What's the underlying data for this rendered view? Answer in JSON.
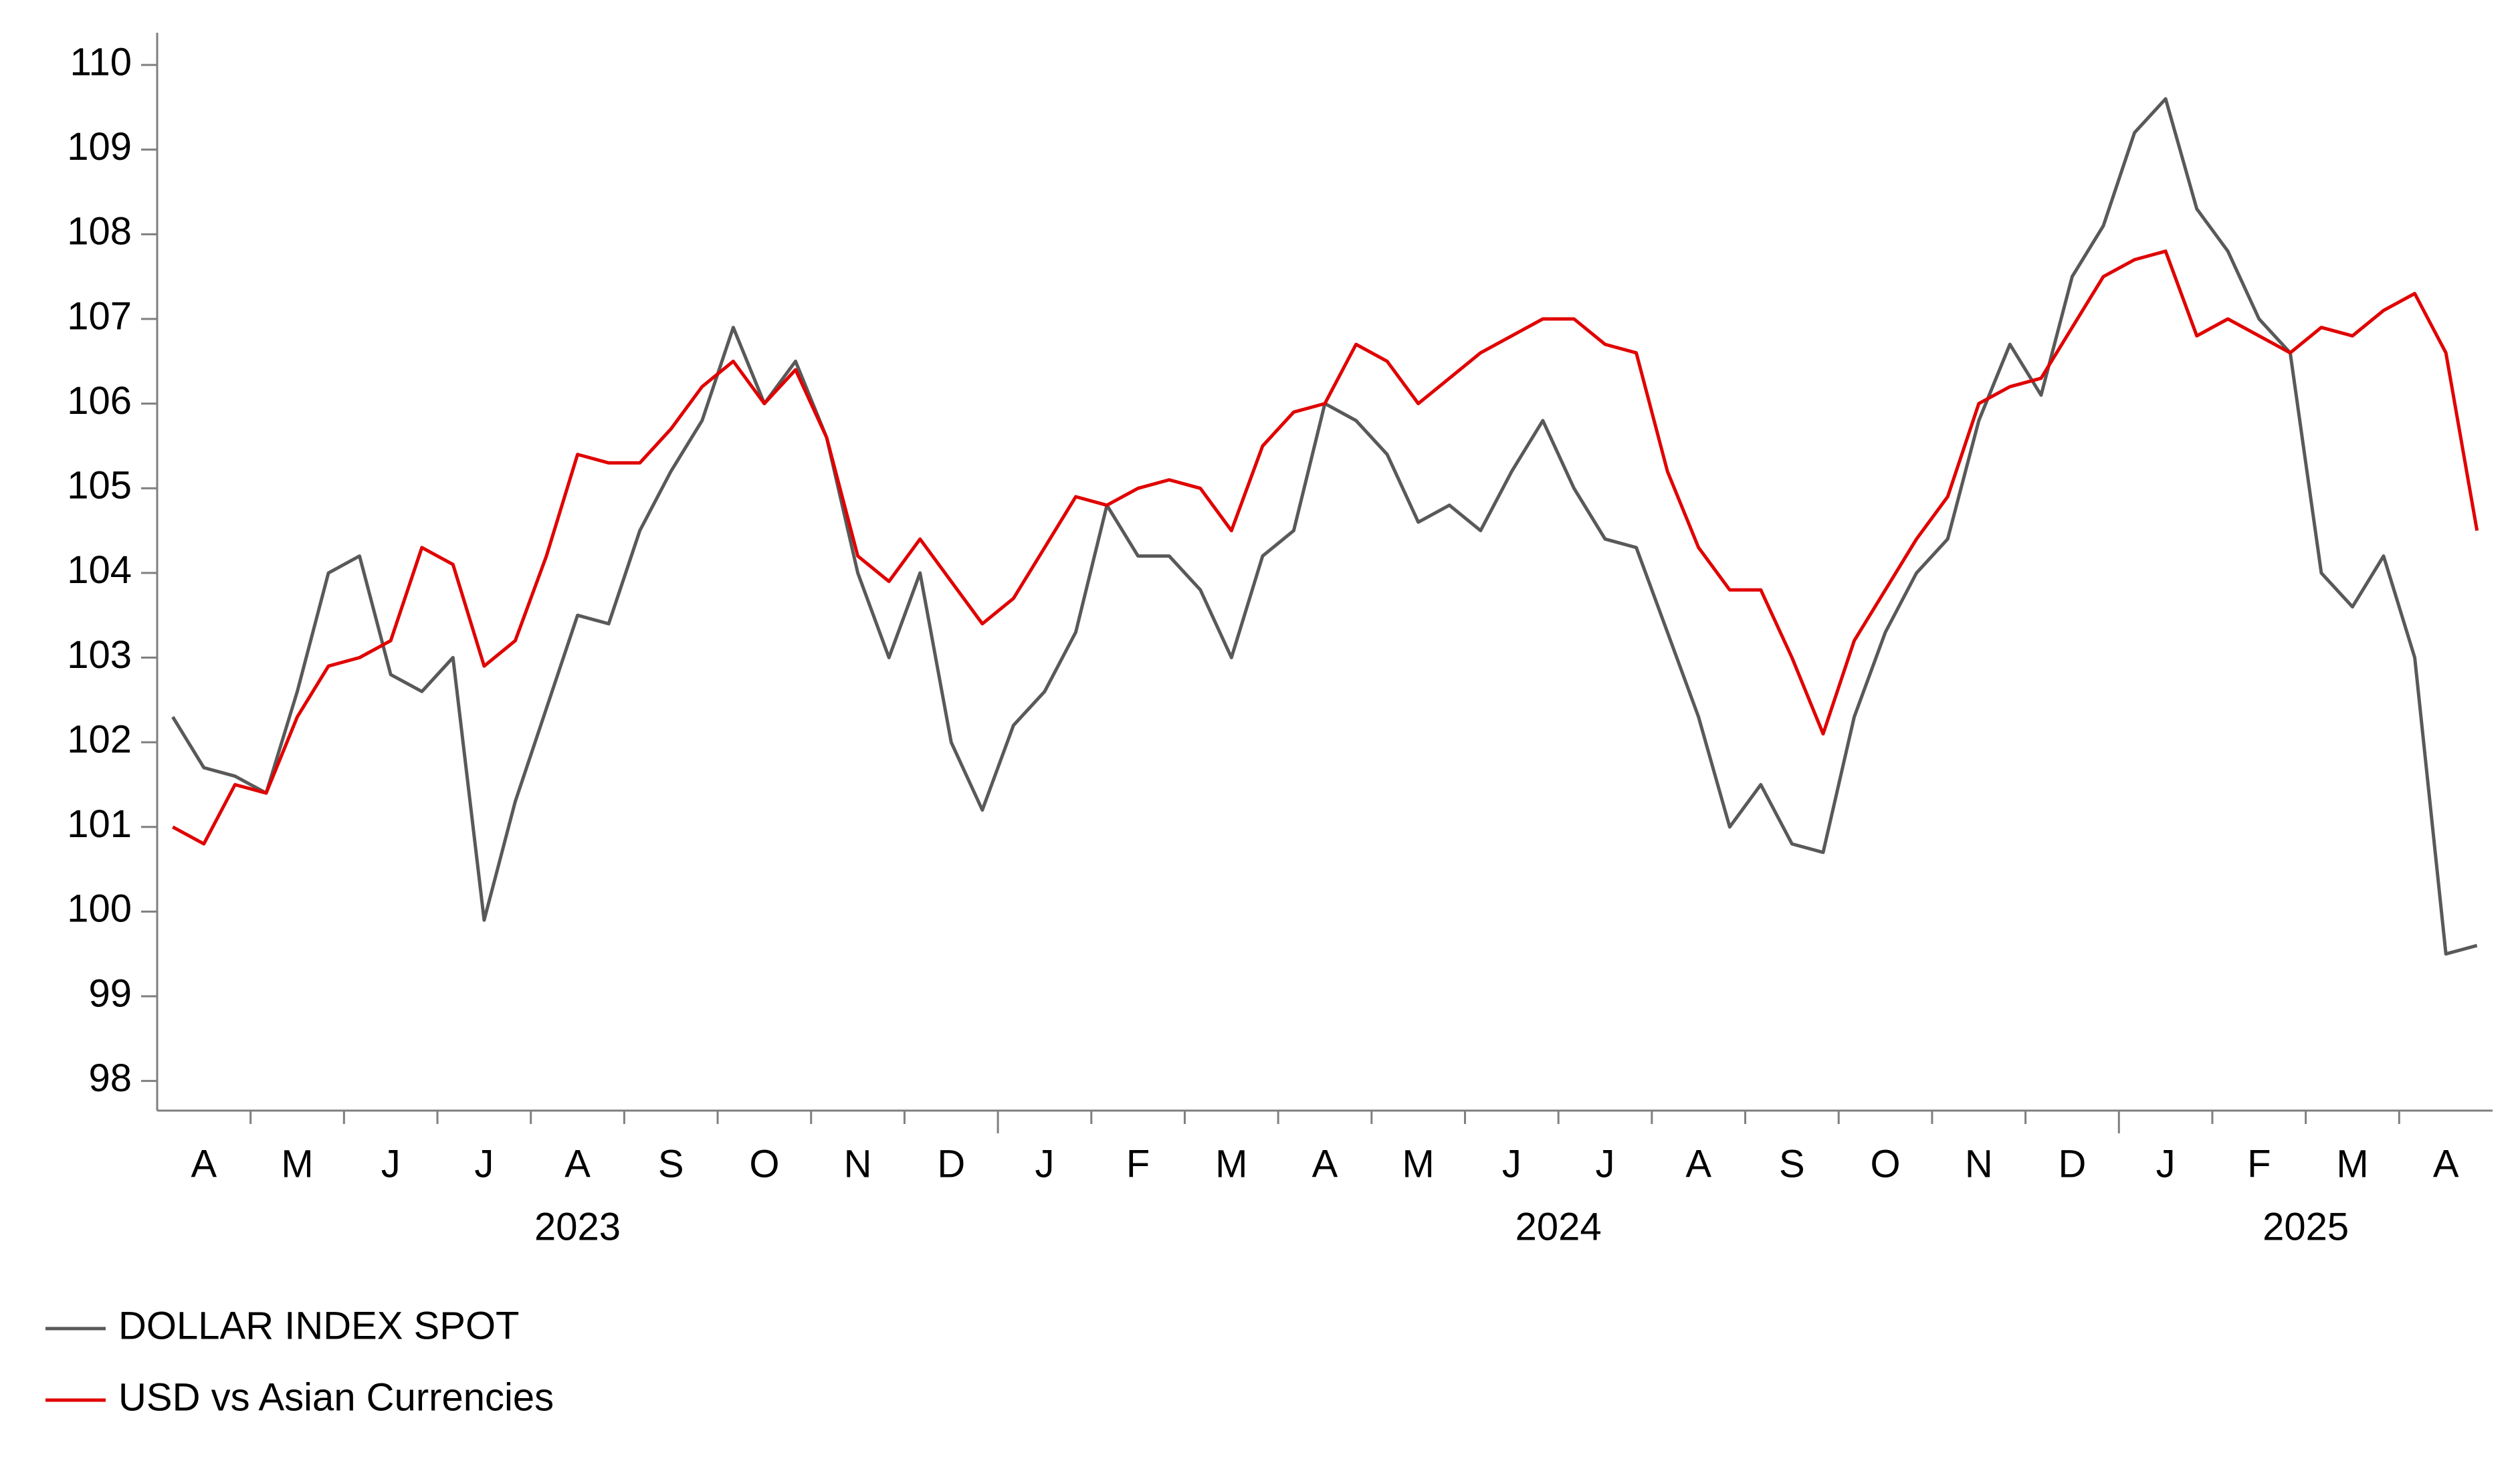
{
  "chart_data": {
    "type": "line",
    "categories": [
      {
        "year": "2023",
        "months": [
          "A",
          "M",
          "J",
          "J",
          "A",
          "S",
          "O",
          "N",
          "D"
        ]
      },
      {
        "year": "2024",
        "months": [
          "J",
          "F",
          "M",
          "A",
          "M",
          "J",
          "J",
          "A",
          "S",
          "O",
          "N",
          "D"
        ]
      },
      {
        "year": "2025",
        "months": [
          "J",
          "F",
          "M",
          "A"
        ]
      }
    ],
    "series": [
      {
        "name": "DOLLAR INDEX SPOT",
        "color": "#595959",
        "values": [
          [
            102.3,
            101.7,
            101.6
          ],
          [
            101.4,
            102.6,
            104.0
          ],
          [
            104.2,
            102.8,
            102.6
          ],
          [
            103.0,
            99.9,
            101.3
          ],
          [
            102.4,
            103.5,
            103.4
          ],
          [
            104.5,
            105.2,
            105.8
          ],
          [
            106.9,
            106.0,
            106.5
          ],
          [
            105.6,
            104.0,
            103.0
          ],
          [
            104.0,
            102.0,
            101.2
          ],
          [
            102.2,
            102.6,
            103.3
          ],
          [
            104.8,
            104.2,
            104.2
          ],
          [
            103.8,
            103.0,
            104.2
          ],
          [
            104.5,
            106.0,
            105.8
          ],
          [
            105.4,
            104.6,
            104.8
          ],
          [
            104.5,
            105.2,
            105.8
          ],
          [
            105.0,
            104.4,
            104.3
          ],
          [
            103.3,
            102.3,
            101.0
          ],
          [
            101.5,
            100.8,
            100.7
          ],
          [
            102.3,
            103.3,
            104.0
          ],
          [
            104.4,
            105.8,
            106.7
          ],
          [
            106.1,
            107.5,
            108.1
          ],
          [
            109.2,
            109.6,
            108.3
          ],
          [
            107.8,
            107.0,
            106.6
          ],
          [
            104.0,
            103.6,
            104.2
          ],
          [
            103.0,
            99.5,
            99.6
          ]
        ]
      },
      {
        "name": "USD vs Asian Currencies",
        "color": "#e00000",
        "values": [
          [
            101.0,
            100.8,
            101.5
          ],
          [
            101.4,
            102.3,
            102.9
          ],
          [
            103.0,
            103.2,
            104.3
          ],
          [
            104.1,
            102.9,
            103.2
          ],
          [
            104.2,
            105.4,
            105.3
          ],
          [
            105.3,
            105.7,
            106.2
          ],
          [
            106.5,
            106.0,
            106.4
          ],
          [
            105.6,
            104.2,
            103.9
          ],
          [
            104.4,
            103.9,
            103.4
          ],
          [
            103.7,
            104.3,
            104.9
          ],
          [
            104.8,
            105.0,
            105.1
          ],
          [
            105.0,
            104.5,
            105.5
          ],
          [
            105.9,
            106.0,
            106.7
          ],
          [
            106.5,
            106.0,
            106.3
          ],
          [
            106.6,
            106.8,
            107.0
          ],
          [
            107.0,
            106.7,
            106.6
          ],
          [
            105.2,
            104.3,
            103.8
          ],
          [
            103.8,
            103.0,
            102.1
          ],
          [
            103.2,
            103.8,
            104.4
          ],
          [
            104.9,
            106.0,
            106.2
          ],
          [
            106.3,
            106.9,
            107.5
          ],
          [
            107.7,
            107.8,
            106.8
          ],
          [
            107.0,
            106.8,
            106.6
          ],
          [
            106.9,
            106.8,
            107.1
          ],
          [
            107.3,
            106.6,
            104.5
          ]
        ]
      }
    ],
    "ylim": [
      97.65,
      110.38
    ],
    "yticks": [
      98,
      99,
      100,
      101,
      102,
      103,
      104,
      105,
      106,
      107,
      108,
      109,
      110
    ]
  }
}
